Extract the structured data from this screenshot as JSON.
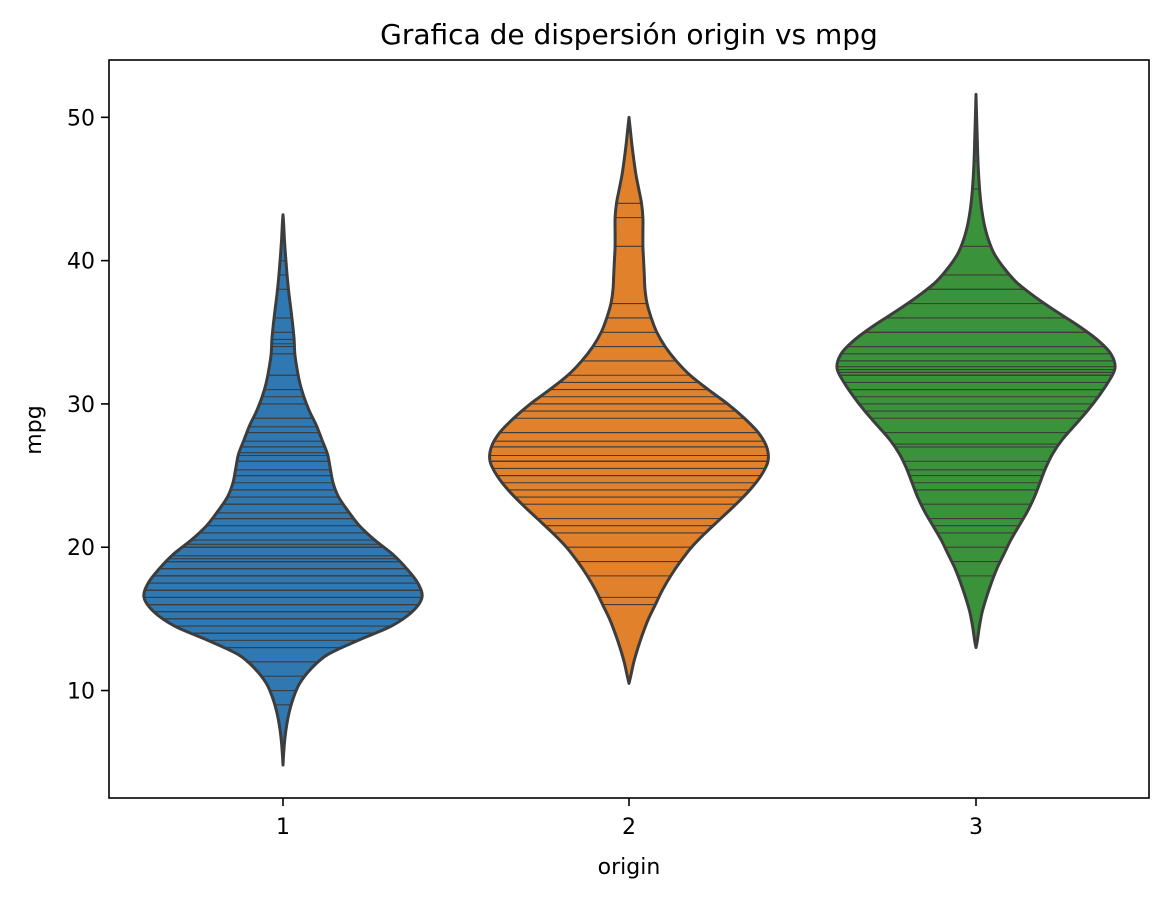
{
  "chart_data": {
    "type": "violin",
    "title": "Grafica de dispersión origin vs mpg",
    "xlabel": "origin",
    "ylabel": "mpg",
    "ylim": [
      2.5,
      54
    ],
    "yticks": [
      10,
      20,
      30,
      40,
      50
    ],
    "categories": [
      "1",
      "2",
      "3"
    ],
    "colors": [
      "#2f78b2",
      "#e2812c",
      "#3a923a"
    ],
    "outline_color": "#3d3d3d",
    "grid": false,
    "legend": "none",
    "violins": [
      {
        "category": "1",
        "profile": [
          [
            4.8,
            0
          ],
          [
            5.5,
            0.004
          ],
          [
            6.5,
            0.012
          ],
          [
            7.5,
            0.025
          ],
          [
            8.5,
            0.045
          ],
          [
            9.5,
            0.075
          ],
          [
            10.5,
            0.12
          ],
          [
            11.5,
            0.2
          ],
          [
            12.5,
            0.32
          ],
          [
            13.5,
            0.54
          ],
          [
            14.5,
            0.78
          ],
          [
            15.5,
            0.93
          ],
          [
            16.5,
            1.0
          ],
          [
            17.5,
            0.97
          ],
          [
            18.5,
            0.89
          ],
          [
            19.5,
            0.79
          ],
          [
            20.5,
            0.66
          ],
          [
            21.5,
            0.55
          ],
          [
            22.5,
            0.47
          ],
          [
            23.5,
            0.4
          ],
          [
            24.5,
            0.36
          ],
          [
            25.5,
            0.34
          ],
          [
            26.5,
            0.32
          ],
          [
            27.5,
            0.28
          ],
          [
            28.5,
            0.24
          ],
          [
            29.5,
            0.19
          ],
          [
            30.5,
            0.15
          ],
          [
            31.5,
            0.12
          ],
          [
            32.5,
            0.1
          ],
          [
            33.5,
            0.085
          ],
          [
            34.5,
            0.08
          ],
          [
            35.5,
            0.07
          ],
          [
            36.5,
            0.058
          ],
          [
            37.5,
            0.045
          ],
          [
            38.5,
            0.034
          ],
          [
            39.5,
            0.025
          ],
          [
            40.5,
            0.017
          ],
          [
            41.5,
            0.01
          ],
          [
            42.5,
            0.005
          ],
          [
            43.2,
            0
          ]
        ],
        "points": [
          9,
          10,
          11,
          12,
          13,
          13,
          13.5,
          14,
          14,
          14,
          14.5,
          15,
          15,
          15,
          15,
          15.5,
          15.5,
          16,
          16,
          16,
          16,
          16.5,
          16.5,
          17,
          17,
          17,
          17,
          17,
          17.5,
          17.5,
          18,
          18,
          18,
          18,
          18,
          18,
          18.5,
          18.5,
          19,
          19,
          19,
          19,
          19.2,
          19.4,
          20,
          20,
          20,
          20.2,
          20.5,
          21,
          21,
          21.5,
          22,
          22,
          22,
          22.4,
          23,
          23,
          23.5,
          24,
          24,
          24.5,
          25,
          25,
          25.4,
          26,
          26,
          26.4,
          26.6,
          27,
          27,
          27.4,
          28,
          28,
          28.4,
          29,
          29,
          30,
          30.5,
          31,
          32,
          32,
          33.5,
          34,
          34.2,
          34.5,
          35,
          36,
          38,
          39,
          40
        ]
      },
      {
        "category": "2",
        "profile": [
          [
            10.5,
            0
          ],
          [
            11,
            0.012
          ],
          [
            12,
            0.035
          ],
          [
            13,
            0.065
          ],
          [
            14,
            0.1
          ],
          [
            15,
            0.14
          ],
          [
            16,
            0.19
          ],
          [
            17,
            0.24
          ],
          [
            18,
            0.3
          ],
          [
            19,
            0.37
          ],
          [
            20,
            0.45
          ],
          [
            21,
            0.55
          ],
          [
            22,
            0.66
          ],
          [
            23,
            0.77
          ],
          [
            24,
            0.87
          ],
          [
            25,
            0.95
          ],
          [
            26,
            1.0
          ],
          [
            27,
            0.99
          ],
          [
            28,
            0.93
          ],
          [
            29,
            0.83
          ],
          [
            30,
            0.71
          ],
          [
            31,
            0.57
          ],
          [
            32,
            0.44
          ],
          [
            33,
            0.34
          ],
          [
            34,
            0.26
          ],
          [
            35,
            0.2
          ],
          [
            36,
            0.16
          ],
          [
            37,
            0.13
          ],
          [
            38,
            0.115
          ],
          [
            39,
            0.11
          ],
          [
            40,
            0.105
          ],
          [
            41,
            0.1
          ],
          [
            42,
            0.1
          ],
          [
            43,
            0.1
          ],
          [
            44,
            0.09
          ],
          [
            45,
            0.07
          ],
          [
            46,
            0.05
          ],
          [
            47,
            0.035
          ],
          [
            48,
            0.022
          ],
          [
            49,
            0.011
          ],
          [
            50,
            0
          ]
        ],
        "points": [
          16,
          16.5,
          18,
          19,
          20,
          21,
          21.5,
          22,
          23,
          23.5,
          24,
          24.5,
          25,
          25,
          25.5,
          26,
          26,
          26,
          26.4,
          27,
          27,
          27.4,
          28,
          28,
          29,
          29.5,
          30,
          30,
          30.5,
          31,
          31.5,
          32,
          33,
          34,
          35,
          36,
          37,
          41,
          43,
          44
        ]
      },
      {
        "category": "3",
        "profile": [
          [
            13,
            0
          ],
          [
            13.5,
            0.01
          ],
          [
            14.5,
            0.025
          ],
          [
            15.5,
            0.045
          ],
          [
            16.5,
            0.075
          ],
          [
            17.5,
            0.11
          ],
          [
            18.5,
            0.15
          ],
          [
            19.5,
            0.2
          ],
          [
            20.5,
            0.25
          ],
          [
            21.5,
            0.31
          ],
          [
            22.5,
            0.37
          ],
          [
            23.5,
            0.42
          ],
          [
            24.5,
            0.46
          ],
          [
            25.5,
            0.5
          ],
          [
            26.5,
            0.55
          ],
          [
            27.5,
            0.62
          ],
          [
            28.5,
            0.71
          ],
          [
            29.5,
            0.8
          ],
          [
            30.5,
            0.88
          ],
          [
            31.5,
            0.95
          ],
          [
            32.5,
            1.0
          ],
          [
            33.5,
            0.97
          ],
          [
            34.5,
            0.87
          ],
          [
            35.5,
            0.73
          ],
          [
            36.5,
            0.57
          ],
          [
            37.5,
            0.42
          ],
          [
            38.5,
            0.29
          ],
          [
            39.5,
            0.2
          ],
          [
            40.5,
            0.13
          ],
          [
            41.5,
            0.088
          ],
          [
            42.5,
            0.06
          ],
          [
            43.5,
            0.042
          ],
          [
            44.5,
            0.03
          ],
          [
            45.5,
            0.022
          ],
          [
            46.5,
            0.016
          ],
          [
            47.5,
            0.012
          ],
          [
            48.5,
            0.009
          ],
          [
            49.5,
            0.006
          ],
          [
            50.5,
            0.003
          ],
          [
            51.6,
            0
          ]
        ],
        "points": [
          18,
          19,
          20,
          21,
          21.5,
          22,
          23,
          24,
          24,
          24.5,
          25,
          25.4,
          26,
          27,
          27.2,
          28,
          29,
          29.5,
          30,
          30.5,
          31,
          31,
          31.5,
          32,
          32,
          32,
          32.2,
          32.4,
          32.6,
          33,
          33,
          33.5,
          34,
          34,
          35,
          35,
          36,
          37,
          38,
          38,
          39,
          41,
          45,
          47
        ]
      }
    ]
  }
}
